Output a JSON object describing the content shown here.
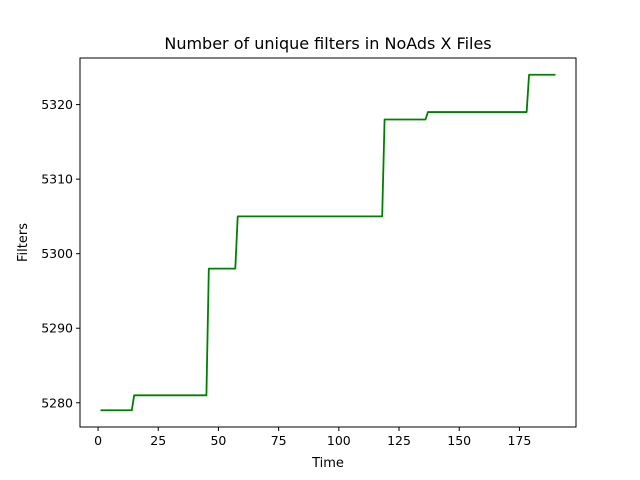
{
  "chart_data": {
    "type": "line",
    "title": "Number of unique filters in NoAds X Files",
    "xlabel": "Time",
    "ylabel": "Filters",
    "xlim": [
      -7.5,
      198.5
    ],
    "ylim": [
      5276.75,
      5326.25
    ],
    "xticks": [
      0,
      25,
      50,
      75,
      100,
      125,
      150,
      175
    ],
    "yticks": [
      5280,
      5290,
      5300,
      5310,
      5320
    ],
    "grid": false,
    "legend": "none",
    "series": [
      {
        "color": "#008000",
        "x": [
          1,
          14,
          15,
          45,
          46,
          57,
          58,
          118,
          119,
          136,
          137,
          178,
          179,
          190
        ],
        "y": [
          5279,
          5279,
          5281,
          5281,
          5298,
          5298,
          5305,
          5305,
          5318,
          5318,
          5319,
          5319,
          5324,
          5324
        ]
      }
    ]
  }
}
